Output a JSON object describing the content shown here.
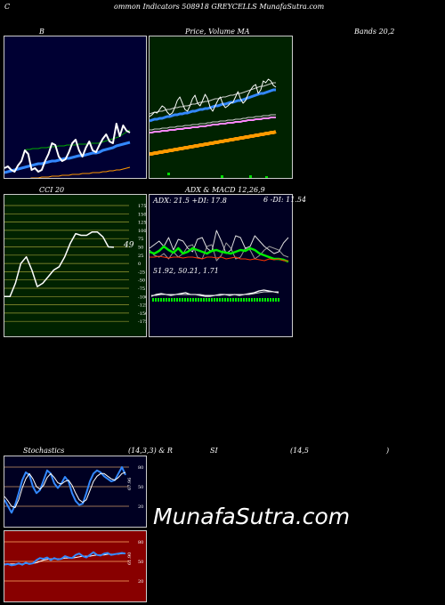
{
  "header": {
    "left_letter": "C",
    "title": "ommon Indicators 508918 GREYCELLS MunafaSutra.com"
  },
  "labels": {
    "bb_left": "B",
    "price_label": "Price, ",
    "volume_label": "Volume",
    "ma_label": " MA",
    "bands_label": "Bands 20,2",
    "cci_label": "CCI 20",
    "adx_macd_label": "ADX  & MACD 12,26,9",
    "stoch_label": "Stochastics",
    "stoch_params": "(14,3,3) & R",
    "rsi_label": "SI",
    "rsi_params": "(14,5",
    "rsi_close": ")"
  },
  "cci_axis": [
    "175",
    "150",
    "125",
    "100",
    "75",
    "50",
    "25",
    "0",
    "-25",
    "-50",
    "-75",
    "-100",
    "-125",
    "-150",
    "-175"
  ],
  "cci_value": "49",
  "adx_text": {
    "adx": "ADX: 21.5 +DI: 17.8",
    "di_minus": "6  -DI: 11.54",
    "macd": "51.92,  50.21,  1.71"
  },
  "stoch_axis": [
    "80",
    "50",
    "20"
  ],
  "stoch_value": "67.96",
  "rsi_axis": [
    "80",
    "50",
    "20"
  ],
  "rsi_value": "61.90",
  "watermark": "MunafaSutra.com",
  "colors": {
    "bb_bg": "#000033",
    "price_bg": "#002200",
    "cci_bg": "#002200",
    "adx_bg": "#000022",
    "stoch_bg": "#000022",
    "rsi_bg": "#880000"
  },
  "chart_data": [
    {
      "type": "line",
      "name": "bollinger",
      "x": [
        0,
        1,
        2,
        3,
        4,
        5,
        6,
        7,
        8,
        9,
        10,
        11,
        12,
        13,
        14,
        15,
        16,
        17,
        18,
        19,
        20,
        21,
        22,
        23,
        24,
        25,
        26,
        27,
        28,
        29,
        30,
        31,
        32,
        33,
        34,
        35,
        36,
        37
      ],
      "series": [
        {
          "values": [
            148,
            146,
            150,
            152,
            145,
            140,
            128,
            132,
            150,
            148,
            152,
            150,
            140,
            132,
            120,
            122,
            135,
            140,
            138,
            130,
            120,
            116,
            128,
            135,
            125,
            118,
            128,
            130,
            122,
            115,
            110,
            118,
            120,
            98,
            112,
            100,
            106,
            108
          ]
        },
        {
          "values": [
            153,
            152,
            151,
            150,
            149,
            148,
            147,
            146,
            145,
            144,
            143,
            143,
            142,
            141,
            140,
            140,
            139,
            138,
            137,
            137,
            136,
            135,
            134,
            134,
            133,
            132,
            131,
            131,
            130,
            128,
            127,
            126,
            125,
            123,
            122,
            121,
            120,
            119
          ]
        },
        {
          "values": [
            128,
            127,
            127,
            126,
            126,
            126,
            125,
            125,
            125,
            124,
            124,
            124,
            123,
            123,
            123,
            122,
            122,
            122,
            122,
            121,
            121,
            121,
            121,
            120,
            120,
            120,
            120,
            119,
            118,
            117,
            116,
            115,
            114,
            113,
            111,
            109,
            107,
            105
          ]
        },
        {
          "values": [
            162,
            162,
            161,
            161,
            161,
            160,
            160,
            160,
            159,
            159,
            159,
            158,
            158,
            158,
            157,
            157,
            157,
            156,
            156,
            156,
            155,
            155,
            155,
            154,
            154,
            154,
            153,
            153,
            153,
            152,
            152,
            151,
            151,
            150,
            150,
            149,
            148,
            147
          ]
        }
      ]
    },
    {
      "type": "line",
      "name": "price_ma",
      "x": [
        0,
        1,
        2,
        3,
        4,
        5,
        6,
        7,
        8,
        9,
        10,
        11,
        12,
        13,
        14,
        15,
        16,
        17,
        18,
        19,
        20,
        21,
        22,
        23,
        24,
        25,
        26,
        27,
        28,
        29,
        30,
        31,
        32,
        33,
        34,
        35,
        36,
        37,
        38,
        39,
        40,
        41,
        42,
        43,
        44,
        45,
        46,
        47,
        48,
        49,
        50
      ],
      "series": [
        {
          "values": [
            130,
            128,
            125,
            126,
            122,
            118,
            120,
            125,
            128,
            126,
            120,
            112,
            108,
            115,
            122,
            124,
            118,
            110,
            106,
            115,
            118,
            112,
            105,
            110,
            120,
            124,
            118,
            112,
            108,
            116,
            120,
            118,
            115,
            114,
            108,
            102,
            110,
            115,
            112,
            105,
            100,
            96,
            94,
            104,
            100,
            90,
            92,
            88,
            90,
            95,
            97
          ]
        },
        {
          "values": [
            135,
            134,
            133,
            133,
            132,
            132,
            131,
            130,
            130,
            129,
            128,
            128,
            127,
            127,
            126,
            126,
            125,
            124,
            124,
            123,
            122,
            122,
            121,
            121,
            120,
            119,
            118,
            118,
            117,
            116,
            116,
            115,
            114,
            114,
            113,
            112,
            112,
            111,
            110,
            109,
            108,
            107,
            106,
            105,
            104,
            104,
            103,
            102,
            101,
            100,
            100
          ]
        },
        {
          "values": [
            148,
            148,
            147,
            147,
            147,
            146,
            146,
            146,
            145,
            145,
            145,
            144,
            144,
            144,
            143,
            143,
            143,
            142,
            142,
            142,
            141,
            141,
            141,
            140,
            140,
            139,
            139,
            139,
            138,
            138,
            138,
            137,
            137,
            137,
            136,
            136,
            136,
            135,
            135,
            134,
            134,
            134,
            133,
            133,
            133,
            132,
            132,
            132,
            131,
            131,
            131
          ]
        },
        {
          "values": [
            172,
            172,
            171,
            171,
            170,
            170,
            169,
            169,
            168,
            168,
            167,
            167,
            166,
            166,
            165,
            165,
            164,
            164,
            163,
            163,
            162,
            162,
            161,
            161,
            160,
            160,
            159,
            159,
            158,
            158,
            157,
            157,
            156,
            156,
            155,
            155,
            154,
            154,
            153,
            153,
            152,
            152,
            151,
            151,
            150,
            150,
            149,
            149,
            148,
            148,
            147
          ]
        }
      ]
    },
    {
      "type": "line",
      "name": "cci",
      "x": [
        0,
        1,
        2,
        3,
        4,
        5,
        6,
        7,
        8,
        9,
        10,
        11,
        12,
        13,
        14,
        15,
        16,
        17,
        18,
        19,
        20
      ],
      "series": [
        {
          "values": [
            -100,
            -100,
            -60,
            0,
            20,
            -20,
            -70,
            -60,
            -40,
            -20,
            -10,
            20,
            60,
            90,
            85,
            85,
            95,
            95,
            80,
            50,
            49
          ]
        }
      ]
    },
    {
      "type": "line",
      "name": "stochastics",
      "x": [
        0,
        1,
        2,
        3,
        4,
        5,
        6,
        7,
        8,
        9,
        10,
        11,
        12,
        13,
        14,
        15,
        16,
        17,
        18,
        19,
        20,
        21,
        22,
        23,
        24,
        25,
        26,
        27,
        28,
        29,
        30,
        31,
        32,
        33,
        34
      ],
      "series": [
        {
          "values": [
            30,
            20,
            10,
            22,
            40,
            60,
            72,
            68,
            50,
            40,
            45,
            60,
            75,
            70,
            55,
            48,
            55,
            65,
            58,
            40,
            28,
            22,
            24,
            40,
            58,
            70,
            75,
            72,
            66,
            62,
            58,
            60,
            70,
            80,
            68
          ]
        },
        {
          "values": [
            35,
            28,
            20,
            18,
            30,
            48,
            62,
            70,
            62,
            50,
            46,
            52,
            64,
            70,
            64,
            56,
            54,
            58,
            60,
            52,
            40,
            30,
            26,
            30,
            44,
            58,
            66,
            70,
            70,
            66,
            62,
            60,
            64,
            70,
            72
          ]
        }
      ]
    },
    {
      "type": "line",
      "name": "rsi",
      "x": [
        0,
        1,
        2,
        3,
        4,
        5,
        6,
        7,
        8,
        9,
        10,
        11,
        12,
        13,
        14,
        15,
        16,
        17,
        18,
        19,
        20,
        21,
        22,
        23,
        24,
        25,
        26,
        27,
        28,
        29,
        30,
        31,
        32,
        33,
        34
      ],
      "series": [
        {
          "values": [
            45,
            46,
            44,
            45,
            47,
            45,
            48,
            46,
            47,
            52,
            55,
            54,
            56,
            52,
            55,
            53,
            54,
            58,
            56,
            55,
            60,
            62,
            58,
            56,
            60,
            64,
            60,
            59,
            62,
            63,
            60,
            61,
            62,
            63,
            62
          ]
        },
        {
          "values": [
            46,
            46,
            46,
            46,
            46,
            46,
            47,
            47,
            47,
            48,
            50,
            52,
            53,
            54,
            54,
            54,
            54,
            55,
            55,
            55,
            56,
            57,
            58,
            58,
            58,
            59,
            60,
            60,
            60,
            61,
            61,
            61,
            61,
            62,
            62
          ]
        }
      ]
    }
  ]
}
